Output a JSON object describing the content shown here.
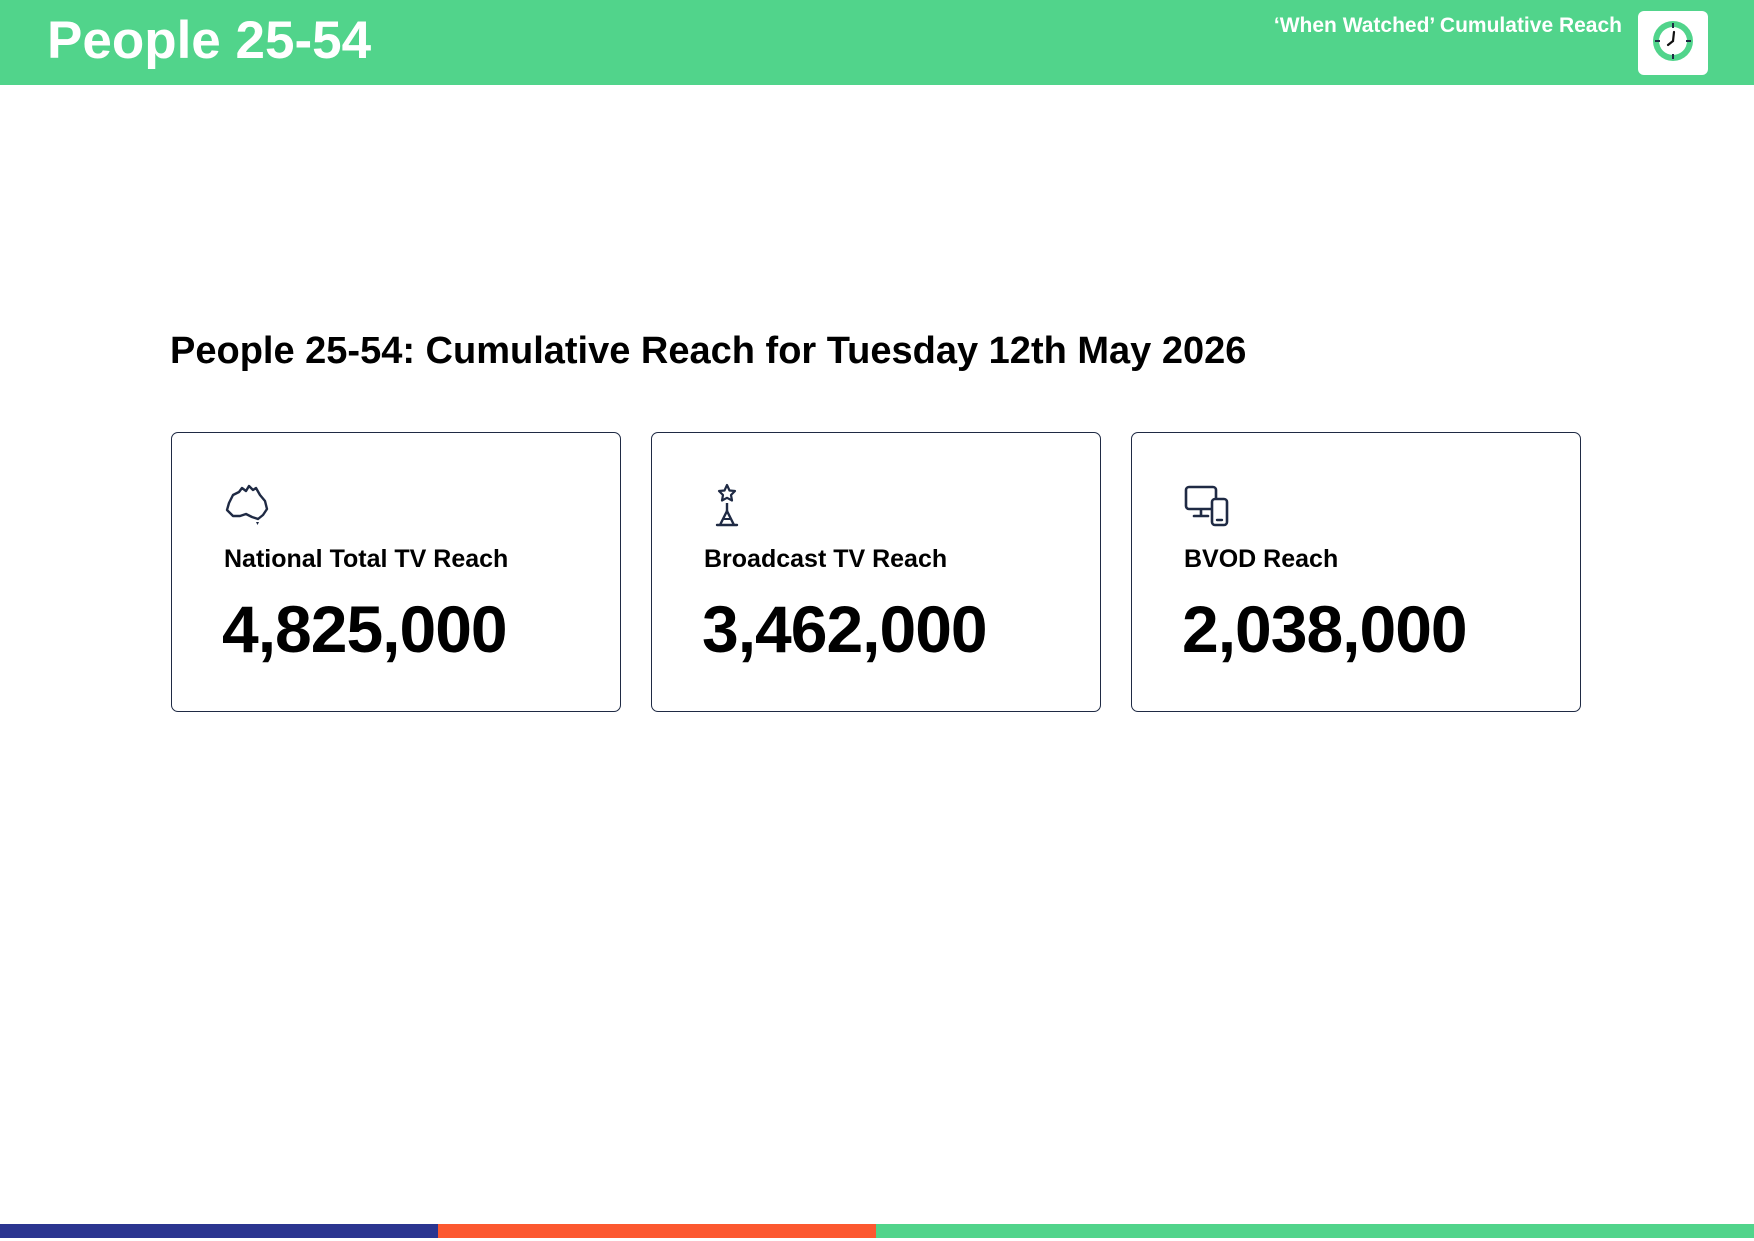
{
  "header": {
    "title": "People 25-54",
    "subtitle": "‘When Watched’ Cumulative Reach",
    "badge_icon": "clock-icon",
    "background_color": "#51d48b"
  },
  "main": {
    "heading": "People 25-54: Cumulative Reach for Tuesday 12th May 2026"
  },
  "cards": [
    {
      "icon": "australia-map-icon",
      "label": "National Total TV Reach",
      "value": "4,825,000"
    },
    {
      "icon": "broadcast-tower-icon",
      "label": "Broadcast TV Reach",
      "value": "3,462,000"
    },
    {
      "icon": "devices-icon",
      "label": "BVOD Reach",
      "value": "2,038,000"
    }
  ],
  "footer": {
    "colors": [
      "#2b3590",
      "#fc5830",
      "#51d48b"
    ]
  }
}
